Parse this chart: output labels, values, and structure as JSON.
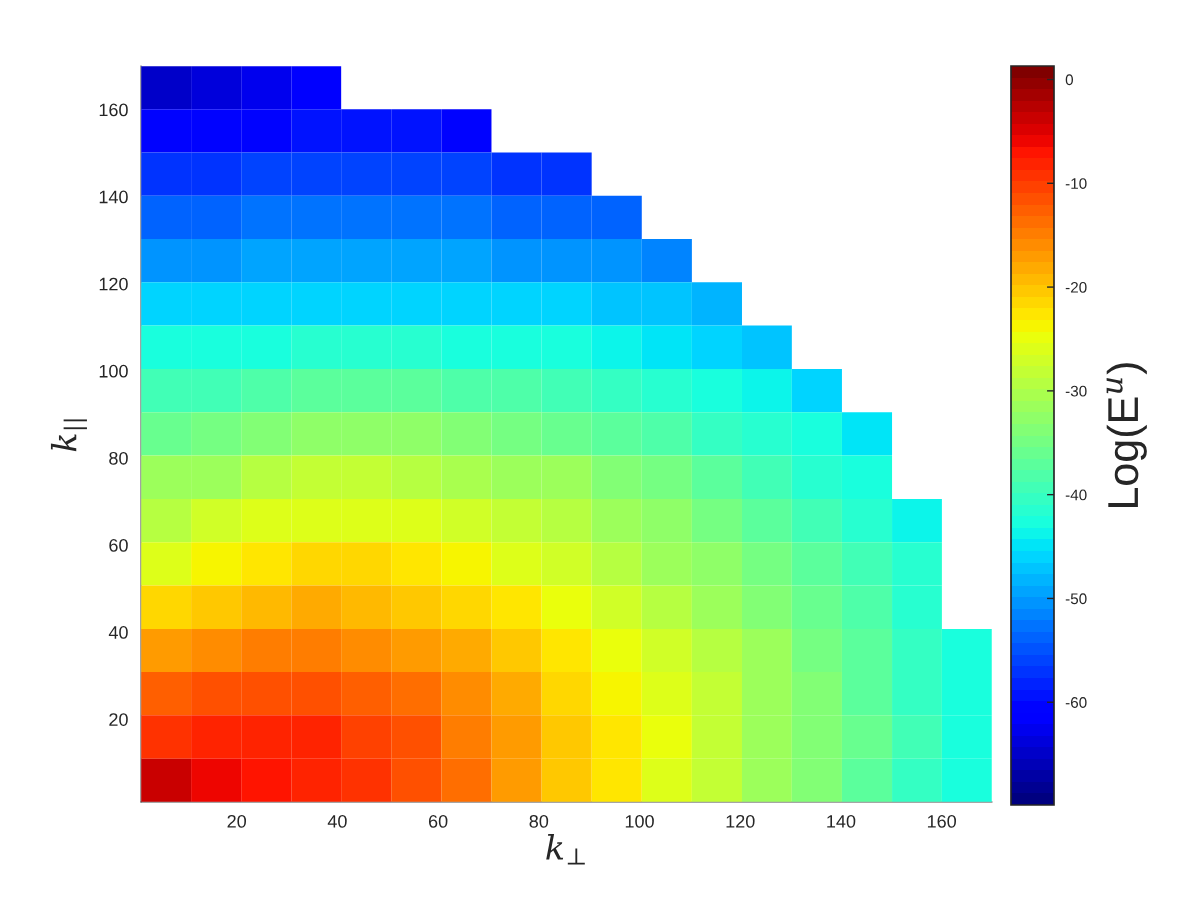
{
  "chart_data": {
    "type": "heatmap",
    "xlabel": "k$_{⊥}$",
    "ylabel": "k$_{||}$",
    "clabel": "Log(E$^{u}$)",
    "x": [
      6.0,
      15.9,
      25.9,
      35.8,
      45.7,
      55.7,
      65.6,
      75.6,
      85.5,
      95.5,
      105.4,
      115.4,
      125.3,
      135.2,
      145.2,
      155.1,
      165.0
    ],
    "y": [
      165.0,
      155.1,
      145.2,
      135.2,
      125.3,
      115.4,
      105.4,
      95.5,
      85.5,
      75.6,
      65.6,
      55.7,
      45.7,
      35.8,
      25.9,
      15.9,
      6.0
    ],
    "xlim": [
      1,
      170
    ],
    "ylim": [
      1,
      170
    ],
    "xticks": [
      20,
      40,
      60,
      80,
      100,
      120,
      140,
      160
    ],
    "yticks": [
      20,
      40,
      60,
      80,
      100,
      120,
      140,
      160
    ],
    "clim": [
      -69.9,
      1.3
    ],
    "cticks": [
      -60,
      -50,
      -40,
      -30,
      -20,
      -10,
      0
    ],
    "cells": [
      [
        -64.5,
        -63.5,
        -62.5,
        -62,
        null,
        null,
        null,
        null,
        null,
        null,
        null,
        null,
        null,
        null,
        null,
        null,
        null
      ],
      [
        -60.5,
        -60,
        -60,
        -59.5,
        -59.5,
        -59.5,
        -60,
        null,
        null,
        null,
        null,
        null,
        null,
        null,
        null,
        null,
        null
      ],
      [
        -57,
        -57,
        -56.5,
        -56.5,
        -56.5,
        -56.5,
        -56.5,
        -57,
        -57.5,
        null,
        null,
        null,
        null,
        null,
        null,
        null,
        null
      ],
      [
        -53.5,
        -53.5,
        -53,
        -53,
        -53,
        -53,
        -53,
        -53.5,
        -53.5,
        -54,
        null,
        null,
        null,
        null,
        null,
        null,
        null
      ],
      [
        -50,
        -50,
        -49.5,
        -49.5,
        -49.5,
        -49.5,
        -49.5,
        -50,
        -50,
        -50.5,
        -51,
        null,
        null,
        null,
        null,
        null,
        null
      ],
      [
        -46.5,
        -46.5,
        -46,
        -46,
        -46,
        -46,
        -46,
        -46.5,
        -46.5,
        -47,
        -47.5,
        -48.5,
        null,
        null,
        null,
        null,
        null
      ],
      [
        -43,
        -43,
        -42.5,
        -42,
        -42,
        -42,
        -42.5,
        -42.5,
        -43,
        -43.5,
        -44.5,
        -45.5,
        -47,
        null,
        null,
        null,
        null
      ],
      [
        -39.5,
        -39,
        -38,
        -37.5,
        -37.5,
        -37.5,
        -38,
        -38.5,
        -39.5,
        -40.5,
        -41.5,
        -42.5,
        -44,
        -45.5,
        null,
        null,
        null
      ],
      [
        -35.5,
        -34.5,
        -33.5,
        -32.5,
        -32.5,
        -33,
        -33.5,
        -34.5,
        -35.5,
        -37,
        -38.5,
        -40,
        -41.5,
        -43,
        -44.5,
        null,
        null
      ],
      [
        -32,
        -31,
        -29.5,
        -28.5,
        -28.5,
        -29,
        -30,
        -31,
        -32,
        -33.5,
        -35,
        -37,
        -39,
        -41,
        -43,
        null,
        null
      ],
      [
        -29,
        -27.5,
        -26,
        -25.5,
        -25.5,
        -26,
        -27,
        -28,
        -29.5,
        -31,
        -33,
        -35,
        -37,
        -39,
        -41,
        -43.5,
        null
      ],
      [
        -25.5,
        -24,
        -22.5,
        -22,
        -22,
        -23,
        -24,
        -25.5,
        -27,
        -29,
        -31,
        -33,
        -35,
        -37,
        -39.5,
        -42,
        null
      ],
      [
        -21.5,
        -20,
        -19,
        -18.5,
        -19,
        -20,
        -21.5,
        -23,
        -25,
        -27,
        -29,
        -31,
        -33.5,
        -36,
        -38.5,
        -41,
        null
      ],
      [
        -17.5,
        -16,
        -15,
        -15,
        -15.5,
        -17,
        -18.5,
        -20.5,
        -22.5,
        -25,
        -27,
        -29.5,
        -32,
        -34.5,
        -37.5,
        -40.5,
        -43
      ],
      [
        -13,
        -12,
        -11.5,
        -11.5,
        -12.5,
        -14,
        -16,
        -18.5,
        -21,
        -23.5,
        -26,
        -28.5,
        -31.5,
        -34,
        -37,
        -40,
        -42.5
      ],
      [
        -9,
        -8,
        -8,
        -8.5,
        -10,
        -12,
        -14.5,
        -17,
        -20,
        -22.5,
        -25,
        -28,
        -31,
        -33.5,
        -36.5,
        -39.5,
        -42.5
      ],
      [
        -3.5,
        -6,
        -7,
        -8,
        -9.5,
        -11.5,
        -14,
        -17,
        -20,
        -23,
        -25.5,
        -28.5,
        -31.5,
        -34,
        -37,
        -40,
        -42.5
      ]
    ]
  }
}
